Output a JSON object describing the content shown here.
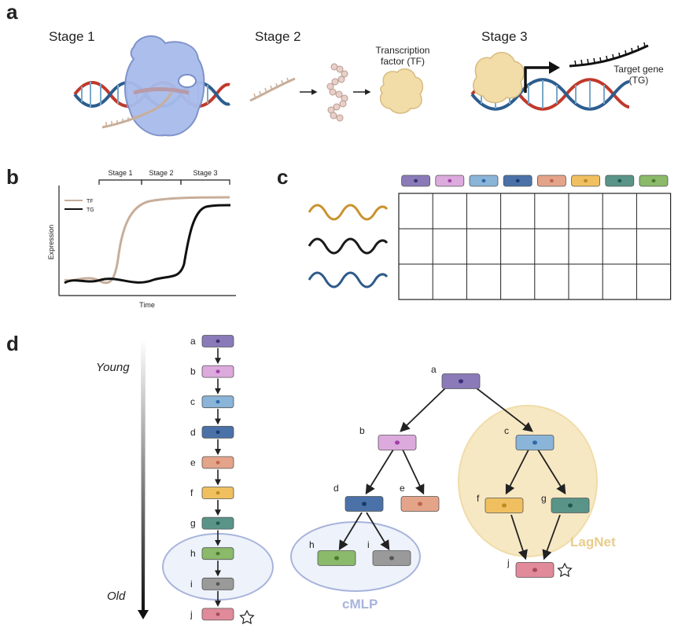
{
  "panels": {
    "a": "a",
    "b": "b",
    "c": "c",
    "d": "d"
  },
  "panel_a": {
    "stage1": "Stage 1",
    "stage2": "Stage 2",
    "stage3": "Stage 3",
    "tf_line1": "Transcription",
    "tf_line2": "factor (TF)",
    "tg_line1": "Target gene",
    "tg_line2": "(TG)"
  },
  "panel_b": {
    "stages": [
      "Stage 1",
      "Stage 2",
      "Stage 3"
    ],
    "legend": [
      "TF",
      "TG"
    ],
    "xlabel": "Time",
    "ylabel": "Expression",
    "colors": {
      "TF": "#c8ae9a",
      "TG": "#111111"
    }
  },
  "panel_c": {
    "rows": 3,
    "cols": 8,
    "wave_colors": [
      "#c9932e",
      "#1a1a1a",
      "#2e5a8a"
    ]
  },
  "cells": {
    "a": {
      "fill": "#8a7ab8",
      "dot": "#3b2f7a"
    },
    "b": {
      "fill": "#dcaadd",
      "dot": "#a23fa8"
    },
    "c": {
      "fill": "#8ab4d8",
      "dot": "#2e6aa8"
    },
    "d": {
      "fill": "#4a72a8",
      "dot": "#1c3a6a"
    },
    "e": {
      "fill": "#e4a48a",
      "dot": "#c0644a"
    },
    "f": {
      "fill": "#f0c060",
      "dot": "#c08a20"
    },
    "g": {
      "fill": "#5a9488",
      "dot": "#1e5a4e"
    },
    "h": {
      "fill": "#8aba6a",
      "dot": "#4a7a2e"
    },
    "i": {
      "fill": "#9a9a9a",
      "dot": "#555555"
    },
    "j": {
      "fill": "#e08a9a",
      "dot": "#a84a5a"
    }
  },
  "panel_d": {
    "young": "Young",
    "old": "Old",
    "letters": [
      "a",
      "b",
      "c",
      "d",
      "e",
      "f",
      "g",
      "h",
      "i",
      "j"
    ],
    "cmlp": "cMLP",
    "lagnet": "LagNet",
    "cmlp_color": "#a8b4dc",
    "lagnet_color": "#e8cc8a"
  }
}
